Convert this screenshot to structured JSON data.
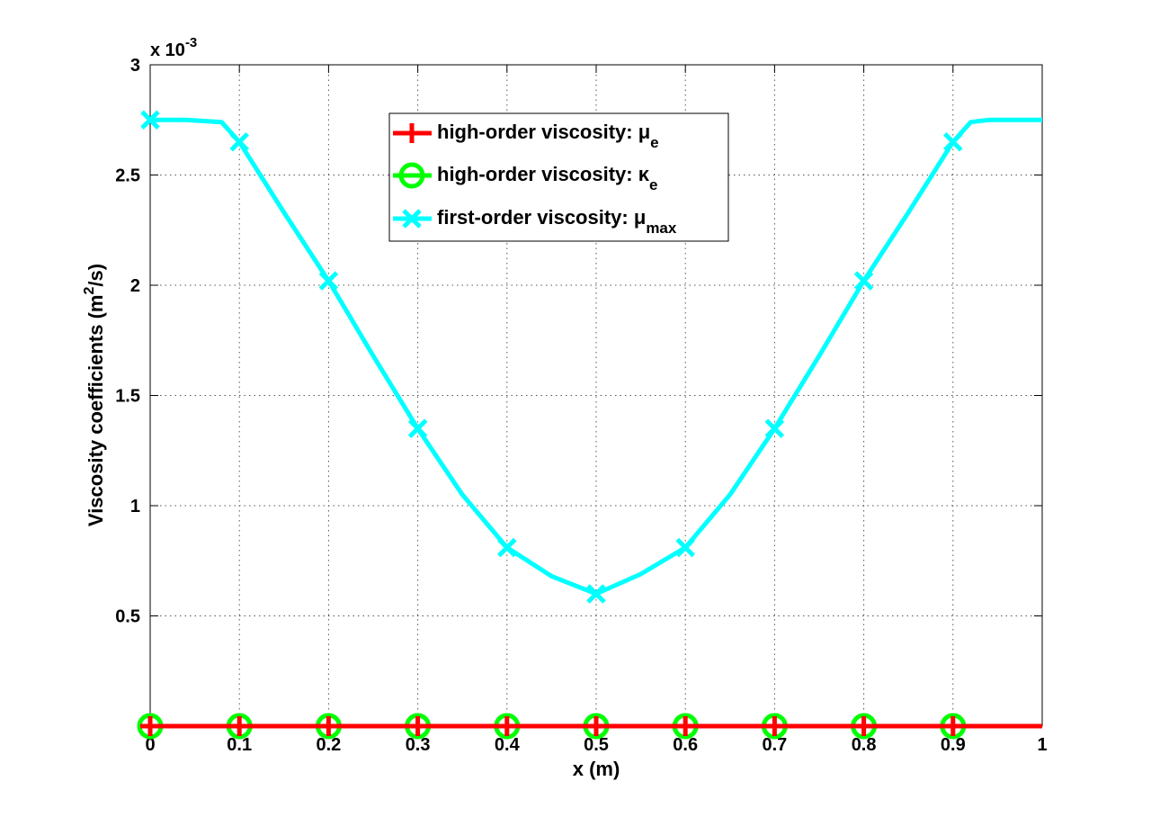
{
  "chart_data": {
    "type": "line",
    "xlabel": "x (m)",
    "ylabel_main": "Viscosity coefficients (m",
    "ylabel_sup": "2",
    "ylabel_tail": "/s)",
    "y_exponent_prefix": "x 10",
    "y_exponent_power": "-3",
    "xlim": [
      0,
      1
    ],
    "ylim": [
      0,
      3
    ],
    "grid": true,
    "legend_position": "top-center",
    "x_ticks": [
      0,
      0.1,
      0.2,
      0.3,
      0.4,
      0.5,
      0.6,
      0.7,
      0.8,
      0.9,
      1
    ],
    "x_tick_labels": [
      "0",
      "0.1",
      "0.2",
      "0.3",
      "0.4",
      "0.5",
      "0.6",
      "0.7",
      "0.8",
      "0.9",
      "1"
    ],
    "y_ticks": [
      0.5,
      1,
      1.5,
      2,
      2.5,
      3
    ],
    "y_tick_labels": [
      "0.5",
      "1",
      "1.5",
      "2",
      "2.5",
      "3"
    ],
    "series": [
      {
        "name": "high-order viscosity: μ",
        "name_subscript": "e",
        "color": "#ff0000",
        "marker": "plus",
        "marker_x": [
          0,
          0.1,
          0.2,
          0.3,
          0.4,
          0.5,
          0.6,
          0.7,
          0.8,
          0.9
        ],
        "x": [
          0,
          1
        ],
        "y": [
          0,
          0
        ]
      },
      {
        "name": "high-order viscosity: κ",
        "name_subscript": "e",
        "color": "#00ff00",
        "marker": "circle",
        "marker_x": [
          0,
          0.1,
          0.2,
          0.3,
          0.4,
          0.5,
          0.6,
          0.7,
          0.8,
          0.9
        ],
        "x": [
          0,
          1
        ],
        "y": [
          0,
          0
        ]
      },
      {
        "name": "first-order viscosity: μ",
        "name_subscript": "max",
        "color": "#00ffff",
        "marker": "x",
        "marker_x": [
          0,
          0.1,
          0.2,
          0.3,
          0.4,
          0.5,
          0.6,
          0.7,
          0.8,
          0.9
        ],
        "x": [
          0,
          0.04,
          0.08,
          0.1,
          0.15,
          0.2,
          0.25,
          0.3,
          0.35,
          0.4,
          0.45,
          0.5,
          0.55,
          0.6,
          0.65,
          0.7,
          0.75,
          0.8,
          0.85,
          0.9,
          0.92,
          0.94,
          1
        ],
        "y": [
          2.75,
          2.75,
          2.74,
          2.65,
          2.33,
          2.02,
          1.68,
          1.35,
          1.05,
          0.81,
          0.68,
          0.6,
          0.69,
          0.81,
          1.05,
          1.35,
          1.68,
          2.02,
          2.33,
          2.65,
          2.74,
          2.75,
          2.75
        ]
      }
    ]
  }
}
